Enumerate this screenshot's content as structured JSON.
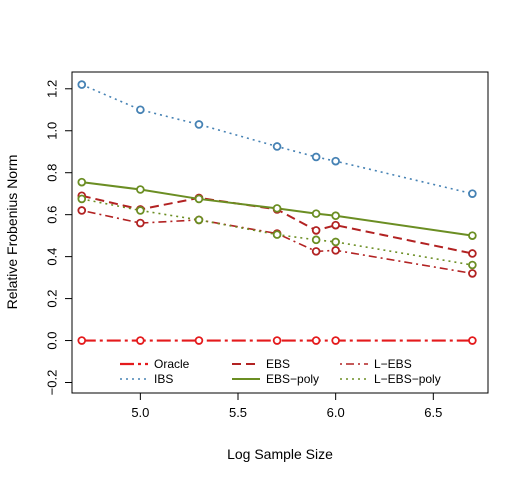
{
  "chart_data": {
    "type": "line",
    "title": "",
    "xlabel": "Log Sample Size",
    "ylabel": "Relative Frobenius Norm",
    "xlim": [
      4.65,
      6.78
    ],
    "ylim": [
      -0.25,
      1.28
    ],
    "grid": false,
    "legend_position": "bottom-inside",
    "x_ticks": [
      5.0,
      5.5,
      6.0,
      6.5
    ],
    "x_tick_labels": [
      "5.0",
      "5.5",
      "6.0",
      "6.5"
    ],
    "y_ticks": [
      -0.2,
      0.0,
      0.2,
      0.4,
      0.6,
      0.8,
      1.0,
      1.2
    ],
    "y_tick_labels": [
      "−0.2",
      "0.0",
      "0.2",
      "0.4",
      "0.6",
      "0.8",
      "1.0",
      "1.2"
    ],
    "x": [
      4.7,
      5.0,
      5.3,
      5.7,
      5.9,
      6.0,
      6.7
    ],
    "series": [
      {
        "name": "Oracle",
        "color": "#e41a1c",
        "dash": "longdash-dot",
        "width": 2.2,
        "values": [
          0.0,
          0.0,
          0.0,
          0.0,
          0.0,
          0.0,
          0.0
        ]
      },
      {
        "name": "IBS",
        "color": "#4682b4",
        "dash": "dotted",
        "width": 1.6,
        "values": [
          1.22,
          1.1,
          1.03,
          0.925,
          0.875,
          0.855,
          0.7
        ]
      },
      {
        "name": "EBS",
        "color": "#b22222",
        "dash": "dashed",
        "width": 2.0,
        "values": [
          0.69,
          0.625,
          0.68,
          0.625,
          0.525,
          0.55,
          0.415
        ]
      },
      {
        "name": "EBS−poly",
        "color": "#6b8e23",
        "dash": "solid",
        "width": 2.0,
        "values": [
          0.755,
          0.72,
          0.675,
          0.63,
          0.605,
          0.595,
          0.5
        ]
      },
      {
        "name": "L−EBS",
        "color": "#b22222",
        "dash": "dotdash",
        "width": 1.6,
        "values": [
          0.62,
          0.56,
          0.575,
          0.51,
          0.425,
          0.43,
          0.32
        ]
      },
      {
        "name": "L−EBS−poly",
        "color": "#6b8e23",
        "dash": "dotted",
        "width": 1.6,
        "values": [
          0.675,
          0.62,
          0.575,
          0.505,
          0.48,
          0.47,
          0.36
        ]
      }
    ]
  }
}
